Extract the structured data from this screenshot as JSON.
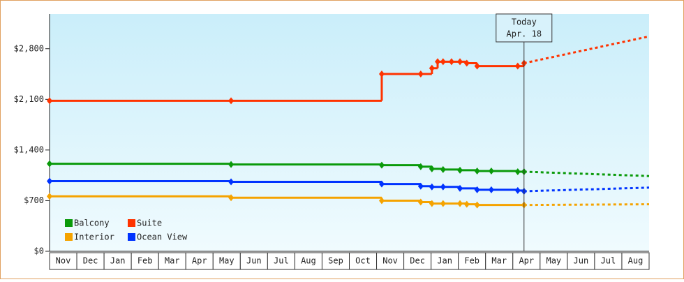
{
  "chart_data": {
    "type": "line",
    "step": "post",
    "categories": [
      "Nov",
      "Dec",
      "Jan",
      "Feb",
      "Mar",
      "Apr",
      "May",
      "Jun",
      "Jul",
      "Aug",
      "Sep",
      "Oct",
      "Nov",
      "Dec",
      "Jan",
      "Feb",
      "Mar",
      "Apr",
      "May",
      "Jun",
      "Jul",
      "Aug"
    ],
    "xlim": [
      0,
      22
    ],
    "ylim": [
      0,
      3280
    ],
    "yticks": [
      {
        "value": 0,
        "label": "$0"
      },
      {
        "value": 700,
        "label": "$700"
      },
      {
        "value": 1400,
        "label": "$1,400"
      },
      {
        "value": 2100,
        "label": "$2,100"
      },
      {
        "value": 2800,
        "label": "$2,800"
      }
    ],
    "today": {
      "x": 17.41,
      "label": "Today",
      "date": "Apr. 18"
    },
    "legend": "bottom-left",
    "series": [
      {
        "name": "Balcony",
        "color": "#0a9a0a",
        "x": [
          0,
          6.66,
          12.19,
          13.62,
          14.03,
          14.44,
          15.06,
          15.69,
          16.21,
          17.18,
          17.41
        ],
        "values": [
          1210,
          1200,
          1190,
          1170,
          1140,
          1130,
          1120,
          1110,
          1110,
          1100,
          1100
        ],
        "forecast": {
          "x": [
            17.41,
            22
          ],
          "values": [
            1100,
            1040
          ]
        }
      },
      {
        "name": "Suite",
        "color": "#ff3300",
        "x": [
          0,
          6.66,
          12.19,
          13.62,
          14.03,
          14.24,
          14.44,
          14.75,
          15.06,
          15.31,
          15.69,
          17.18,
          17.41
        ],
        "values": [
          2080,
          2080,
          2450,
          2450,
          2530,
          2620,
          2620,
          2620,
          2620,
          2600,
          2560,
          2560,
          2600
        ],
        "forecast": {
          "x": [
            17.41,
            22
          ],
          "values": [
            2600,
            2970
          ]
        }
      },
      {
        "name": "Interior",
        "color": "#f5a300",
        "x": [
          0,
          6.66,
          12.19,
          13.62,
          14.03,
          14.44,
          15.06,
          15.31,
          15.69,
          17.41
        ],
        "values": [
          760,
          740,
          700,
          680,
          660,
          660,
          660,
          650,
          640,
          640
        ],
        "forecast": {
          "x": [
            17.41,
            22
          ],
          "values": [
            640,
            650
          ]
        }
      },
      {
        "name": "Ocean View",
        "color": "#0033ff",
        "x": [
          0,
          6.66,
          12.19,
          13.62,
          14.03,
          14.44,
          15.06,
          15.69,
          16.21,
          17.18,
          17.41
        ],
        "values": [
          970,
          960,
          930,
          900,
          890,
          890,
          870,
          850,
          850,
          840,
          830
        ],
        "forecast": {
          "x": [
            17.41,
            22
          ],
          "values": [
            830,
            880
          ]
        }
      }
    ]
  }
}
